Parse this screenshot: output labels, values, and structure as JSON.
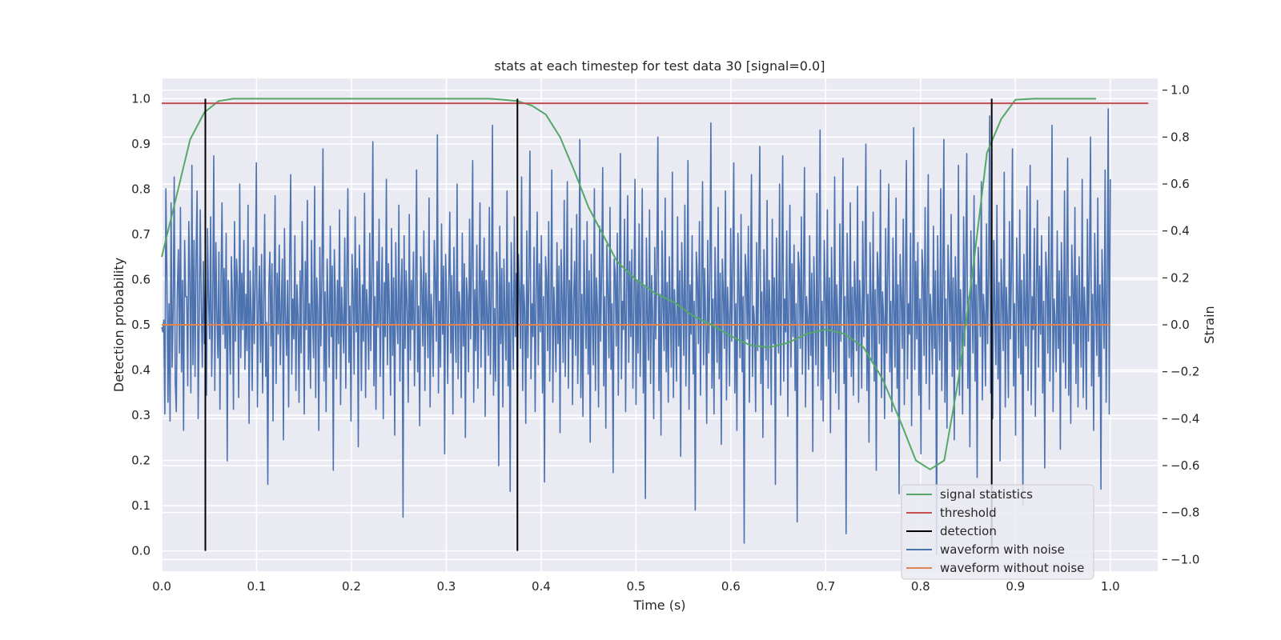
{
  "chart_data": {
    "type": "line",
    "title": "stats at each timestep for test data 30 [signal=0.0]",
    "xlabel": "Time (s)",
    "ylabel": "Detection probability",
    "y2label": "Strain",
    "xlim": [
      0.0,
      1.05
    ],
    "ylim": [
      -0.045,
      1.045
    ],
    "y2lim": [
      -1.05,
      1.05
    ],
    "x_ticks": [
      "0.0",
      "0.1",
      "0.2",
      "0.3",
      "0.4",
      "0.5",
      "0.6",
      "0.7",
      "0.8",
      "0.9",
      "1.0"
    ],
    "y_ticks": [
      "0.0",
      "0.1",
      "0.2",
      "0.3",
      "0.4",
      "0.5",
      "0.6",
      "0.7",
      "0.8",
      "0.9",
      "1.0"
    ],
    "y2_ticks": [
      "−1.0",
      "−0.8",
      "−0.6",
      "−0.4",
      "−0.2",
      "0.0",
      "0.2",
      "0.4",
      "0.6",
      "0.8",
      "1.0"
    ],
    "grid": true,
    "legend_position": "lower-right",
    "colors": {
      "signal_statistics": "#55a868",
      "threshold": "#c44e52",
      "detection": "#000000",
      "waveform_with_noise": "#4c72b0",
      "waveform_without_noise": "#dd8452",
      "background": "#eaeaf2",
      "grid": "#ffffff"
    },
    "series": [
      {
        "name": "signal statistics",
        "axis": "left",
        "x": [
          0.0,
          0.015,
          0.03,
          0.045,
          0.06,
          0.075,
          0.09,
          0.12,
          0.2,
          0.3,
          0.345,
          0.36,
          0.375,
          0.39,
          0.405,
          0.42,
          0.435,
          0.45,
          0.465,
          0.48,
          0.5,
          0.52,
          0.54,
          0.56,
          0.58,
          0.6,
          0.62,
          0.64,
          0.66,
          0.68,
          0.7,
          0.72,
          0.74,
          0.76,
          0.78,
          0.795,
          0.81,
          0.825,
          0.84,
          0.855,
          0.87,
          0.885,
          0.9,
          0.92,
          0.95,
          0.985
        ],
        "y": [
          0.65,
          0.78,
          0.91,
          0.97,
          0.995,
          1.0,
          1.0,
          1.0,
          1.0,
          1.0,
          1.0,
          0.998,
          0.995,
          0.985,
          0.965,
          0.915,
          0.84,
          0.76,
          0.7,
          0.64,
          0.6,
          0.57,
          0.55,
          0.52,
          0.5,
          0.475,
          0.455,
          0.45,
          0.46,
          0.48,
          0.49,
          0.48,
          0.45,
          0.38,
          0.28,
          0.2,
          0.18,
          0.2,
          0.38,
          0.62,
          0.88,
          0.955,
          0.998,
          1.0,
          1.0,
          1.0
        ]
      },
      {
        "name": "threshold",
        "axis": "left",
        "x": [
          0.0,
          1.04
        ],
        "y": [
          0.99,
          0.99
        ]
      },
      {
        "name": "waveform with noise",
        "axis": "right",
        "x_range": [
          0.0,
          1.0
        ],
        "values": [
          -0.01,
          -0.03,
          0.02,
          -0.38,
          0.58,
          0.2,
          -0.33,
          0.09,
          -0.41,
          0.52,
          -0.18,
          0.06,
          0.63,
          -0.24,
          -0.37,
          0.14,
          0.32,
          -0.12,
          0.5,
          -0.2,
          0.19,
          -0.45,
          0.36,
          0.12,
          0.12,
          -0.26,
          0.44,
          0.19,
          -0.29,
          0.68,
          -0.17,
          0.36,
          -0.22,
          0.29,
          0.57,
          -0.4,
          0.02,
          0.49,
          0.09,
          -0.18,
          0.27,
          -0.08,
          0.21,
          -0.3,
          0.41,
          0.1,
          -0.06,
          0.46,
          -0.22,
          0.08,
          0.72,
          -0.28,
          0.35,
          0.04,
          -0.14,
          0.31,
          -0.36,
          0.17,
          0.52,
          -0.04,
          0.24,
          -0.1,
          0.39,
          -0.58,
          0.19,
          0.01,
          -0.21,
          0.29,
          0.11,
          -0.36,
          0.44,
          -0.07,
          0.28,
          0.16,
          -0.31,
          0.6,
          -0.14,
          0.22,
          -0.02,
          0.36,
          -0.19,
          0.13,
          -0.11,
          0.51,
          -0.42,
          0.23,
          0.05,
          -0.28,
          0.33,
          -0.08,
          0.18,
          0.69,
          -0.35,
          0.07,
          0.25,
          -0.16,
          0.3,
          -0.29,
          0.1,
          0.47,
          -0.22,
          0.01,
          -0.68,
          0.16,
          0.31,
          -0.09,
          0.26,
          -0.41,
          0.12,
          0.55,
          -0.25,
          0.22,
          -0.04,
          0.34,
          -0.17,
          0.08,
          0.28,
          -0.49,
          0.41,
          0.03,
          -0.13,
          0.19,
          -0.35,
          0.29,
          0.64,
          -0.21,
          0.11,
          -0.06,
          0.38,
          -0.28,
          0.17,
          0.04,
          -0.33,
          0.23,
          -0.12,
          0.44,
          0.15,
          -0.38,
          0.27,
          -0.02,
          0.53,
          -0.19,
          0.09,
          -0.27,
          0.36,
          0.02,
          -0.14,
          0.59,
          -0.31,
          0.2,
          0.06,
          -0.45,
          0.33,
          -0.09,
          0.21,
          0.75,
          -0.24,
          0.14,
          -0.37,
          0.28,
          0.07,
          -0.18,
          0.42,
          -0.05,
          0.25,
          -0.62,
          0.32,
          0.11,
          -0.23,
          0.19,
          -0.08,
          0.49,
          -0.34,
          0.16,
          0.02,
          -0.12,
          0.37,
          -0.27,
          0.22,
          0.58,
          -0.16,
          0.08,
          -0.41,
          0.3,
          0.13,
          -0.21,
          0.46,
          -0.03,
          0.24,
          -0.52,
          0.34,
          0.1,
          -0.28,
          0.17,
          -0.07,
          0.56,
          -0.31,
          0.15,
          0.04,
          -0.19,
          0.39,
          -0.11,
          0.21,
          0.78,
          -0.26,
          0.12,
          -0.36,
          0.27,
          -0.01,
          0.45,
          -0.22,
          0.09,
          0.33,
          -0.4,
          0.18,
          -0.05,
          0.62,
          -0.17,
          0.26,
          0.05,
          -0.3,
          0.41,
          -0.13,
          0.2,
          -0.47,
          0.35,
          0.03,
          -0.08,
          0.51,
          -0.24,
          0.14,
          0.28,
          -0.82,
          0.38,
          -0.1,
          0.23,
          0.07,
          -0.33,
          0.47,
          -0.15,
          0.19,
          -0.02,
          0.31,
          -0.26,
          0.12,
          0.66,
          -0.2,
          0.08,
          -0.43,
          0.29,
          0.16,
          -0.09,
          0.4,
          -0.28,
          0.22,
          0.06,
          -0.14,
          0.54,
          -0.35,
          0.13,
          0.01,
          -0.22,
          0.36,
          0.18,
          -0.07,
          0.81,
          -0.29,
          0.1,
          -0.18,
          0.43,
          -0.04,
          0.25,
          -0.55,
          0.3,
          0.09,
          -0.25,
          0.17,
          0.48,
          -0.12,
          0.21,
          -0.38,
          0.33,
          0.02,
          -0.16,
          0.6,
          -0.23,
          0.14,
          0.05,
          -0.31,
          0.39,
          -0.09,
          0.26,
          -0.48,
          0.2,
          0.11,
          -0.2,
          0.45,
          -0.06,
          0.27,
          0.7,
          -0.33,
          0.15,
          -0.11,
          0.34,
          -0.27,
          0.08,
          0.52,
          -0.18,
          0.23,
          -0.02,
          0.37,
          -0.39,
          0.19,
          0.04,
          -0.13,
          0.5,
          -0.21,
          0.12,
          0.85,
          -0.3,
          0.07,
          -0.24,
          0.31,
          0.16,
          -0.6,
          0.42,
          -0.08,
          0.24,
          -0.35,
          0.28,
          0.03,
          -0.15,
          0.57,
          -0.26,
          0.18,
          -0.71,
          0.35,
          0.1,
          -0.19,
          0.46,
          -0.05,
          0.22,
          -0.32,
          0.3,
          0.13,
          -0.1,
          0.63,
          -0.28,
          0.17,
          0.06,
          -0.42,
          0.4,
          -0.14,
          0.21,
          0.74,
          -0.23,
          0.09,
          -0.05,
          0.33,
          -0.37,
          0.15,
          0.48,
          -0.17,
          0.26,
          -0.03,
          0.38,
          -0.29,
          0.12,
          -0.67,
          0.29,
          0.2,
          -0.11,
          0.44,
          -0.24,
          0.07,
          0.66,
          -0.33,
          0.16,
          0.01,
          -0.2,
          0.35,
          -0.08,
          0.25,
          -0.46,
          0.32,
          0.11,
          -0.16,
          0.53,
          -0.22,
          0.14,
          0.61,
          -0.27,
          0.19,
          -0.06,
          0.41,
          -0.34,
          0.1,
          0.27,
          -0.13,
          0.47,
          -0.25,
          0.05,
          0.79,
          -0.31,
          0.13,
          -0.39,
          0.36,
          0.08,
          -0.1,
          0.44,
          -0.21,
          0.23,
          -0.5,
          0.3,
          0.04,
          -0.17,
          0.58,
          -0.28,
          0.2,
          0.06,
          -0.35,
          0.42,
          -0.07,
          0.24,
          0.67,
          -0.26,
          0.12,
          -0.44,
          0.34,
          0.15,
          -0.14,
          0.5,
          -0.19,
          0.09,
          -0.63,
          0.28,
          0.22,
          -0.09,
          0.39,
          -0.3,
          0.17,
          0.73,
          -0.23,
          0.1,
          -0.02,
          0.45,
          -0.37,
          0.14,
          0.55,
          -0.16,
          0.27,
          -0.05,
          0.32,
          -0.27,
          0.08,
          0.62,
          -0.34,
          0.19,
          -0.12,
          0.43,
          -0.22,
          0.11,
          0.58,
          -0.29,
          0.16,
          -0.74,
          0.37,
          0.04,
          -0.15,
          0.49,
          -0.25,
          0.21,
          0.03,
          -0.4,
          0.33,
          -0.06,
          0.26,
          0.8,
          -0.28,
          0.13,
          -0.47,
          0.4,
          0.09,
          -0.11,
          0.54,
          -0.2,
          0.18,
          -0.33,
          0.29,
          0.05,
          -0.18,
          0.65,
          -0.31,
          0.15,
          0.02,
          -0.24,
          0.46,
          -0.09,
          0.23,
          -0.56,
          0.35,
          0.12,
          -0.13,
          0.51,
          -0.26,
          0.07,
          0.7,
          -0.36,
          0.17,
          -0.04,
          0.38,
          -0.21,
          0.1,
          -0.79,
          0.31,
          0.2,
          -0.08,
          0.44,
          -0.3,
          0.14,
          0.61,
          -0.17,
          0.24,
          0.01,
          -0.42,
          0.36,
          -0.12,
          0.19,
          0.86,
          -0.27,
          0.11,
          -0.38,
          0.33,
          0.06,
          -0.16,
          0.5,
          -0.23,
          0.22,
          -0.51,
          0.28,
          0.13,
          -0.1,
          0.57,
          -0.32,
          0.16,
          0.03,
          -0.26,
          0.41,
          -0.07,
          0.25,
          0.69,
          -0.29,
          0.09,
          -0.45,
          0.39,
          0.15,
          -0.14,
          0.47,
          -0.2,
          0.12,
          -0.93,
          0.3,
          0.21,
          -0.06,
          0.42,
          -0.33,
          0.18,
          0.64,
          -0.22,
          0.08,
          0.0,
          -0.37,
          0.35,
          -0.11,
          0.27,
          0.76,
          -0.25,
          0.14,
          -0.48,
          0.32,
          0.1,
          -0.15,
          0.53,
          -0.27,
          0.19,
          0.04,
          -0.34,
          0.45,
          -0.08,
          0.2,
          -0.68,
          0.37,
          0.07,
          -0.12,
          0.6,
          -0.3,
          0.16,
          0.72,
          -0.24,
          0.11,
          -0.03,
          0.4,
          -0.39,
          0.13,
          0.51,
          -0.18,
          0.26,
          -0.05,
          0.34,
          -0.28,
          0.09,
          -0.84,
          0.31,
          0.23,
          -0.1,
          0.46,
          -0.21,
          0.15,
          0.67,
          -0.35,
          0.12,
          0.02,
          -0.19,
          0.38,
          -0.13,
          0.22,
          -0.54,
          0.29,
          0.06,
          -0.17,
          0.56,
          -0.26,
          0.18,
          0.83,
          -0.32,
          0.1,
          -0.41,
          0.36,
          0.14,
          -0.09,
          0.49,
          -0.23,
          0.2,
          -0.46,
          0.33,
          0.05,
          -0.2,
          0.63,
          -0.29,
          0.17,
          0.01,
          -0.36,
          0.43,
          -0.07,
          0.24,
          0.71,
          -0.25,
          0.12,
          -0.89,
          0.39,
          0.08,
          -0.14,
          0.52,
          -0.22,
          0.16,
          -0.3,
          0.27,
          0.11,
          -0.11,
          0.59,
          -0.33,
          0.19,
          0.04,
          -0.27,
          0.44,
          -0.05,
          0.21,
          0.77,
          -0.28,
          0.13,
          -0.5,
          0.35,
          0.09,
          -0.16,
          0.48,
          -0.24,
          0.15,
          -0.62,
          0.31,
          0.2,
          -0.08,
          0.66,
          -0.31,
          0.14,
          0.03,
          -0.4,
          0.41,
          -0.12,
          0.25,
          0.6,
          -0.2,
          0.1,
          -0.37,
          0.37,
          0.07,
          -0.18,
          0.54,
          -0.27,
          0.17,
          -0.72,
          0.3,
          0.12,
          -0.1,
          0.45,
          -0.34,
          0.18,
          0.7,
          -0.23,
          0.09,
          -0.04,
          0.39,
          -0.43,
          0.16,
          0.84,
          -0.19,
          0.27,
          -0.06,
          0.35,
          -0.3,
          0.11,
          -0.55,
          0.32,
          0.22,
          -0.13,
          0.5,
          -0.25,
          0.14,
          0.64,
          -0.36,
          0.13,
          0.02,
          -0.21,
          0.42,
          -0.1,
          0.23,
          -0.98,
          0.38,
          0.05,
          -0.15,
          0.58,
          -0.28,
          0.19,
          0.79,
          -0.33,
          0.11,
          -0.44,
          0.34,
          0.16,
          -0.07,
          0.47,
          -0.22,
          0.2,
          -0.49,
          0.29,
          0.08,
          -0.19,
          0.68,
          -0.3,
          0.15,
          0.0,
          -0.38,
          0.46,
          -0.09,
          0.26,
          0.73,
          -0.27,
          0.12,
          -0.52,
          0.4,
          0.1,
          -0.12,
          0.55,
          -0.24,
          0.17,
          -0.65,
          0.33,
          0.21,
          -0.05,
          0.61,
          -0.32,
          0.13,
          0.04,
          -0.26,
          0.43,
          -0.08,
          0.22,
          0.89,
          -0.29,
          0.14,
          -0.4,
          0.36,
          0.06,
          -0.17,
          0.51,
          -0.23,
          0.18,
          -0.58,
          0.28,
          0.11,
          -0.11,
          0.65,
          -0.35,
          0.16,
          0.02,
          -0.31,
          0.44,
          -0.06,
          0.24,
          0.75,
          -0.26,
          0.09,
          -0.47,
          0.37,
          0.13,
          -0.14,
          0.49,
          -0.21,
          0.19,
          -0.77,
          0.3,
          0.07,
          -0.09,
          0.59,
          -0.28,
          0.15,
          0.68,
          -0.34,
          0.12,
          -0.02,
          0.41,
          -0.39,
          0.17,
          0.53,
          -0.18,
          0.25,
          -0.04,
          0.38,
          -0.29,
          0.1,
          -0.61,
          0.31,
          0.2,
          -0.12,
          0.46,
          -0.24,
          0.14,
          0.85,
          -0.37,
          0.11,
          0.01,
          -0.2,
          0.4,
          -0.1,
          0.23,
          -0.53,
          0.35,
          0.08,
          -0.16,
          0.57,
          -0.27,
          0.18,
          0.71,
          -0.3,
          0.12,
          -0.42,
          0.34,
          0.15,
          -0.08,
          0.5,
          -0.25,
          0.21,
          -0.35,
          0.29,
          0.06,
          -0.18,
          0.62,
          -0.31,
          0.16,
          0.03,
          -0.36,
          0.45,
          -0.07,
          0.26,
          0.8,
          -0.26,
          0.13,
          -0.45,
          0.39,
          0.09,
          -0.13,
          0.54,
          -0.22,
          0.17,
          -0.7,
          0.32,
          0.1,
          -0.1,
          0.66,
          -0.33,
          0.14,
          0.92,
          -0.38,
          0.62
        ]
      },
      {
        "name": "waveform without noise",
        "axis": "right",
        "x": [
          0.0,
          1.0
        ],
        "y": [
          0.0,
          0.0
        ]
      }
    ],
    "detections": [
      0.046,
      0.375,
      0.875
    ],
    "detection_range": [
      0.0,
      1.0
    ],
    "legend": [
      "signal statistics",
      "threshold",
      "detection",
      "waveform with noise",
      "waveform without noise"
    ]
  }
}
